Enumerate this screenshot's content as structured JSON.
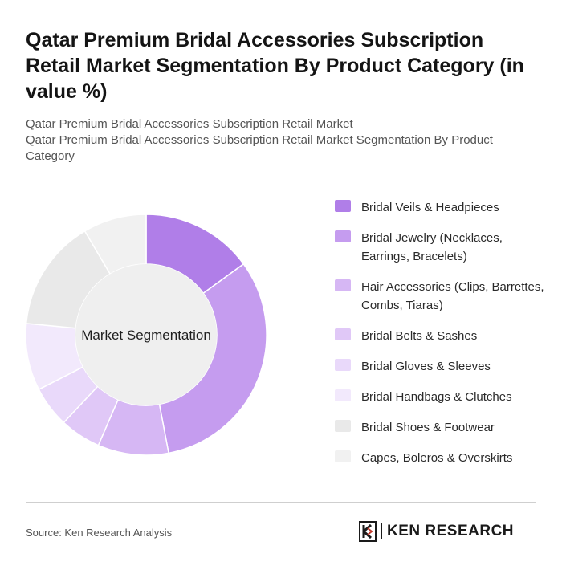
{
  "header": {
    "title": "Qatar Premium Bridal Accessories Subscription Retail Market Segmentation By Product Category (in value %)",
    "subtitle_line1": "Qatar Premium Bridal Accessories Subscription Retail Market",
    "subtitle_line2": "Qatar Premium Bridal Accessories Subscription Retail Market Segmentation By Product Category"
  },
  "chart_data": {
    "type": "pie",
    "center_label": "Market Segmentation",
    "categories": [
      "Bridal Veils & Headpieces",
      "Bridal Jewelry (Necklaces, Earrings, Bracelets)",
      "Hair Accessories (Clips, Barrettes, Combs, Tiaras)",
      "Bridal Belts & Sashes",
      "Bridal Gloves & Sleeves",
      "Bridal Handbags & Clutches",
      "Bridal Shoes & Footwear",
      "Capes, Boleros & Overskirts"
    ],
    "values": [
      15,
      32,
      9.5,
      5.5,
      5.5,
      9,
      15,
      8.5
    ],
    "colors": [
      "#b07ee8",
      "#c59cef",
      "#d6b7f4",
      "#e0c8f7",
      "#e9d9fa",
      "#f2e9fc",
      "#e9e9e9",
      "#f1f1f1"
    ],
    "legend_position": "right"
  },
  "footer": {
    "source": "Source: Ken Research Analysis",
    "logo_text": "KEN RESEARCH"
  }
}
